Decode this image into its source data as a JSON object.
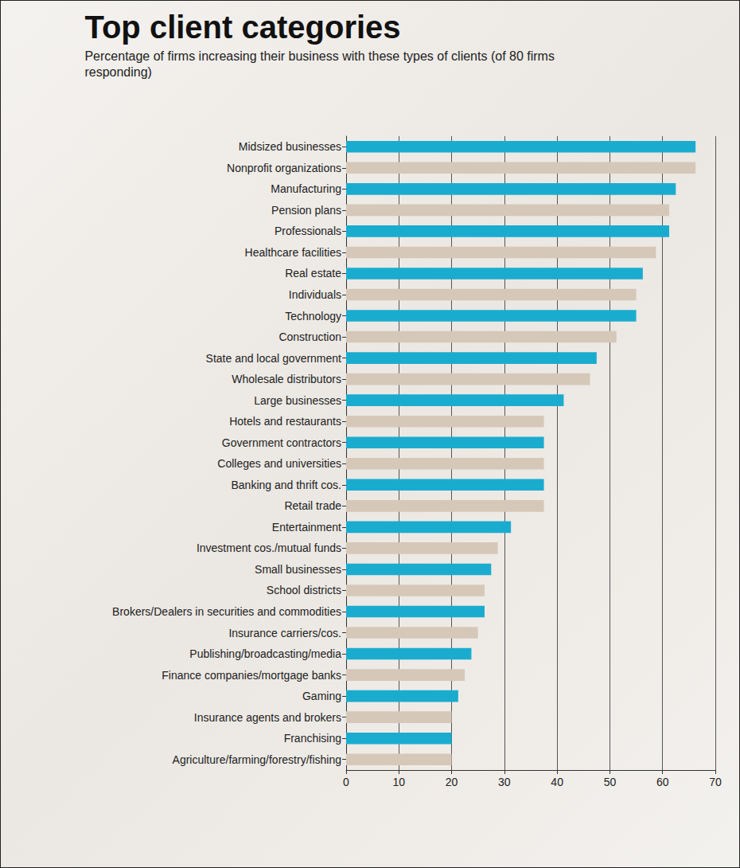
{
  "chart_data": {
    "type": "bar",
    "title": "Top client categories",
    "subtitle": "Percentage of firms increasing their business with these types of clients (of 80 firms responding)",
    "orientation": "horizontal",
    "categories": [
      "Midsized businesses",
      "Nonprofit organizations",
      "Manufacturing",
      "Pension plans",
      "Professionals",
      "Healthcare facilities",
      "Real estate",
      "Individuals",
      "Technology",
      "Construction",
      "State and local government",
      "Wholesale distributors",
      "Large businesses",
      "Hotels and restaurants",
      "Government contractors",
      "Colleges and universities",
      "Banking and thrift cos.",
      "Retail trade",
      "Entertainment",
      "Investment cos./mutual funds",
      "Small businesses",
      "School districts",
      "Brokers/Dealers in securities and commodities",
      "Insurance carriers/cos.",
      "Publishing/broadcasting/media",
      "Finance companies/mortgage banks",
      "Gaming",
      "Insurance agents and brokers",
      "Franchising",
      "Agriculture/farming/forestry/fishing"
    ],
    "values": [
      66.25,
      66.25,
      62.5,
      61.25,
      61.25,
      58.75,
      56.25,
      55,
      55,
      51.25,
      47.5,
      46.25,
      41.25,
      37.5,
      37.5,
      37.5,
      37.5,
      37.5,
      31.25,
      28.75,
      27.5,
      26.25,
      26.25,
      25,
      23.75,
      22.5,
      21.25,
      20,
      20,
      20
    ],
    "colors": [
      "#1aaccf",
      "#d6c8b8",
      "#1aaccf",
      "#d6c8b8",
      "#1aaccf",
      "#d6c8b8",
      "#1aaccf",
      "#d6c8b8",
      "#1aaccf",
      "#d6c8b8",
      "#1aaccf",
      "#d6c8b8",
      "#1aaccf",
      "#d6c8b8",
      "#1aaccf",
      "#d6c8b8",
      "#1aaccf",
      "#d6c8b8",
      "#1aaccf",
      "#d6c8b8",
      "#1aaccf",
      "#d6c8b8",
      "#1aaccf",
      "#d6c8b8",
      "#1aaccf",
      "#d6c8b8",
      "#1aaccf",
      "#d6c8b8",
      "#1aaccf",
      "#d6c8b8"
    ],
    "xlim": [
      0,
      70
    ],
    "xticks": [
      0,
      10,
      20,
      30,
      40,
      50,
      60,
      70
    ],
    "grid": true
  }
}
